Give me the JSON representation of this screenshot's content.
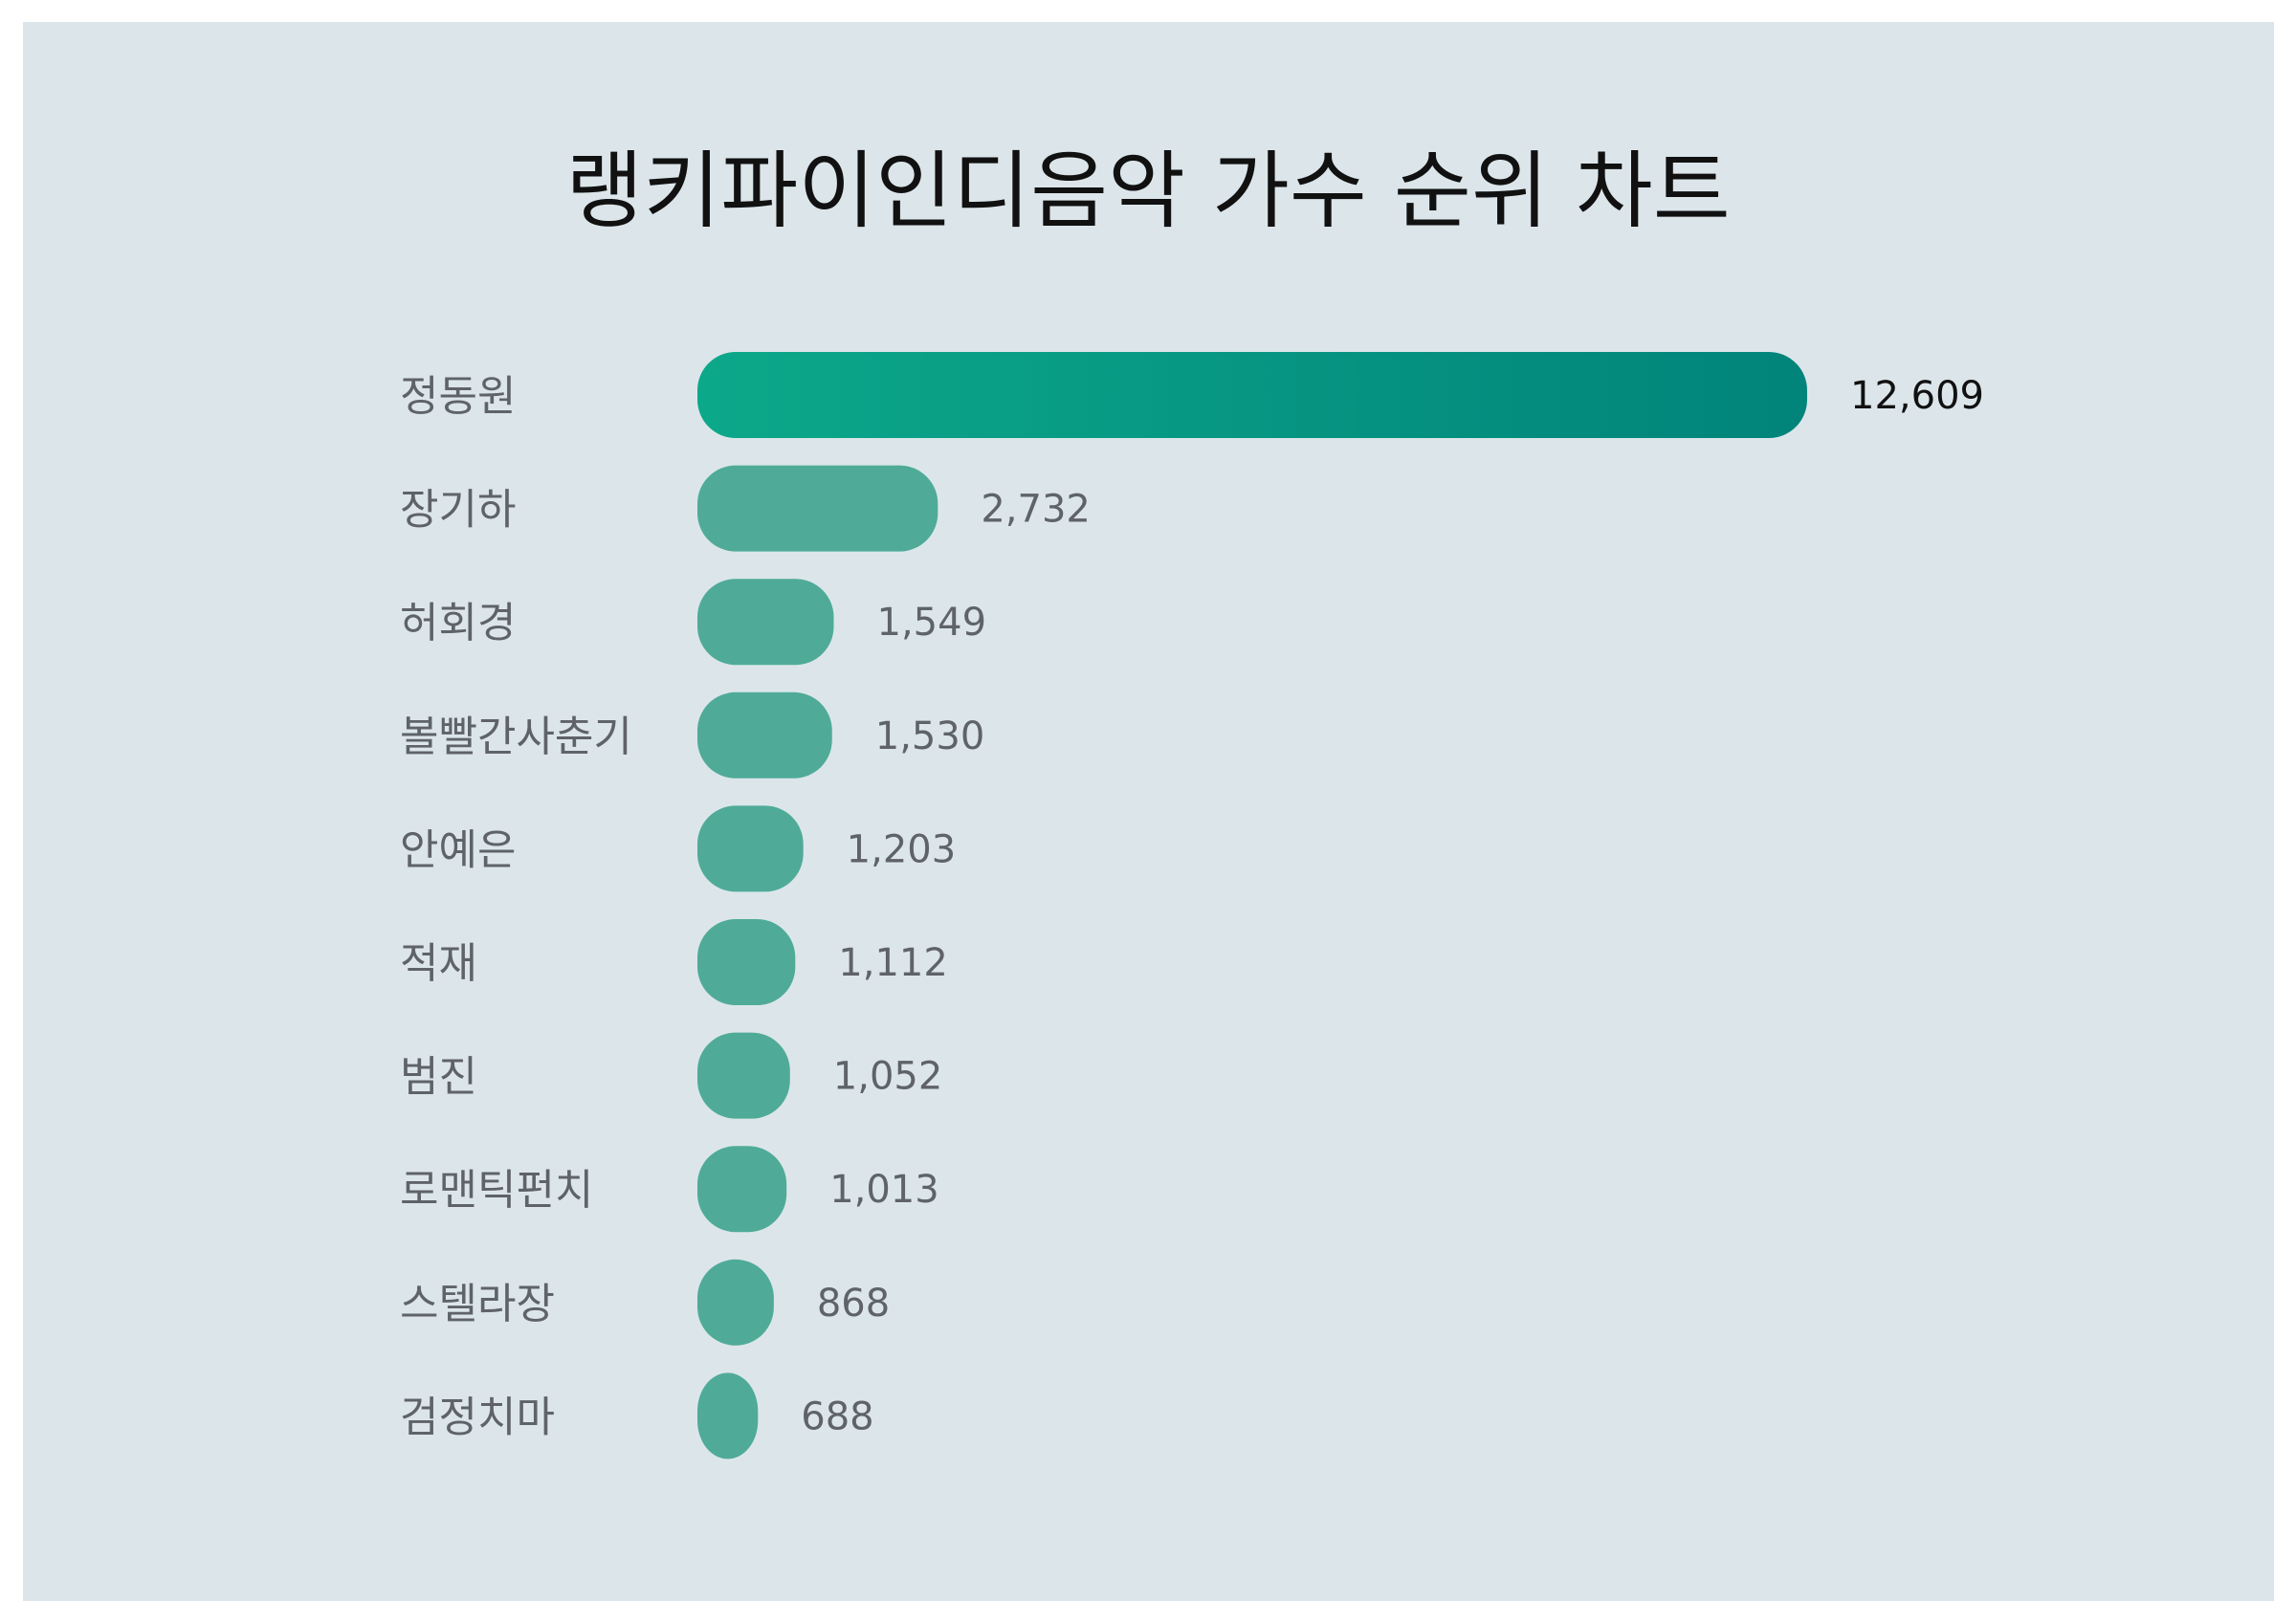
{
  "chart_data": {
    "type": "bar",
    "orientation": "horizontal",
    "title": "랭키파이인디음악 가수 순위 차트",
    "categories": [
      "정동원",
      "장기하",
      "허회경",
      "볼빨간사춘기",
      "안예은",
      "적재",
      "범진",
      "로맨틱펀치",
      "스텔라장",
      "검정치마"
    ],
    "values": [
      12609,
      2732,
      1549,
      1530,
      1203,
      1112,
      1052,
      1013,
      868,
      688
    ],
    "value_labels": [
      "12,609",
      "2,732",
      "1,549",
      "1,530",
      "1,203",
      "1,112",
      "1,052",
      "1,013",
      "868",
      "688"
    ],
    "xlabel": "",
    "ylabel": "",
    "grid": false,
    "legend": "none"
  },
  "colors": {
    "background": "#dce6ea",
    "top_bar_start": "#0ca88a",
    "top_bar_end": "#01847a",
    "bar": "#4fab98",
    "label_text": "#5f6368",
    "top_value_text": "#111111"
  }
}
